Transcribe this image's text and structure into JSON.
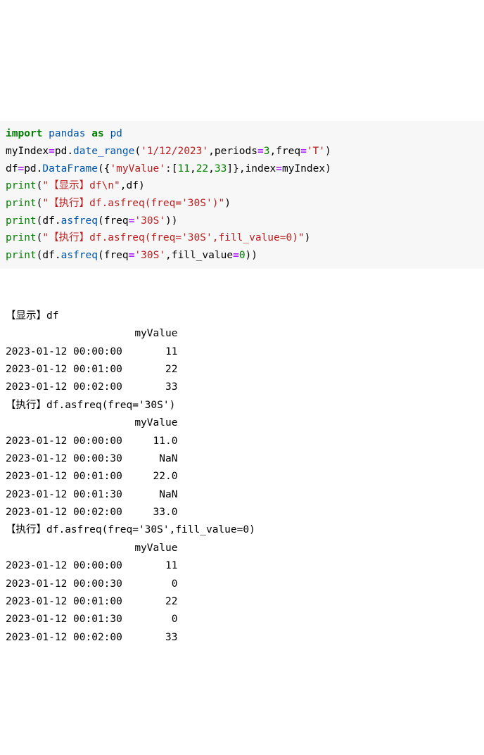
{
  "code": {
    "tokens": [
      [
        [
          "import",
          "kw"
        ],
        [
          " ",
          "ws"
        ],
        [
          "pandas",
          "attr"
        ],
        [
          " ",
          "ws"
        ],
        [
          "as",
          "kw"
        ],
        [
          " ",
          "ws"
        ],
        [
          "pd",
          "attr"
        ]
      ],
      [
        [
          "myIndex",
          "name"
        ],
        [
          "=",
          "op"
        ],
        [
          "pd",
          "name"
        ],
        [
          ".",
          "punct"
        ],
        [
          "date_range",
          "attr"
        ],
        [
          "(",
          "punct"
        ],
        [
          "'1/12/2023'",
          "str"
        ],
        [
          ",",
          "punct"
        ],
        [
          "periods",
          "param"
        ],
        [
          "=",
          "op"
        ],
        [
          "3",
          "num"
        ],
        [
          ",",
          "punct"
        ],
        [
          "freq",
          "param"
        ],
        [
          "=",
          "op"
        ],
        [
          "'T'",
          "str"
        ],
        [
          ")",
          "punct"
        ]
      ],
      [
        [
          "df",
          "name"
        ],
        [
          "=",
          "op"
        ],
        [
          "pd",
          "name"
        ],
        [
          ".",
          "punct"
        ],
        [
          "DataFrame",
          "attr"
        ],
        [
          "({",
          "punct"
        ],
        [
          "'myValue'",
          "str"
        ],
        [
          ":[",
          "punct"
        ],
        [
          "11",
          "num"
        ],
        [
          ",",
          "punct"
        ],
        [
          "22",
          "num"
        ],
        [
          ",",
          "punct"
        ],
        [
          "33",
          "num"
        ],
        [
          "]},",
          "punct"
        ],
        [
          "index",
          "param"
        ],
        [
          "=",
          "op"
        ],
        [
          "myIndex)",
          "name"
        ]
      ],
      [
        [
          "print",
          "bi"
        ],
        [
          "(",
          "punct"
        ],
        [
          "\"【显示】df\\n\"",
          "str"
        ],
        [
          ",",
          "punct"
        ],
        [
          "df)",
          "name"
        ]
      ],
      [
        [
          "print",
          "bi"
        ],
        [
          "(",
          "punct"
        ],
        [
          "\"【执行】df.asfreq(freq='30S')\"",
          "str"
        ],
        [
          ")",
          "punct"
        ]
      ],
      [
        [
          "print",
          "bi"
        ],
        [
          "(",
          "punct"
        ],
        [
          "df",
          "name"
        ],
        [
          ".",
          "punct"
        ],
        [
          "asfreq",
          "attr"
        ],
        [
          "(",
          "punct"
        ],
        [
          "freq",
          "param"
        ],
        [
          "=",
          "op"
        ],
        [
          "'30S'",
          "str"
        ],
        [
          "))",
          "punct"
        ]
      ],
      [
        [
          "print",
          "bi"
        ],
        [
          "(",
          "punct"
        ],
        [
          "\"【执行】df.asfreq(freq='30S',fill_value=0)\"",
          "str"
        ],
        [
          ")",
          "punct"
        ]
      ],
      [
        [
          "print",
          "bi"
        ],
        [
          "(",
          "punct"
        ],
        [
          "df",
          "name"
        ],
        [
          ".",
          "punct"
        ],
        [
          "asfreq",
          "attr"
        ],
        [
          "(",
          "punct"
        ],
        [
          "freq",
          "param"
        ],
        [
          "=",
          "op"
        ],
        [
          "'30S'",
          "str"
        ],
        [
          ",",
          "punct"
        ],
        [
          "fill_value",
          "param"
        ],
        [
          "=",
          "op"
        ],
        [
          "0",
          "num"
        ],
        [
          "))",
          "punct"
        ]
      ]
    ],
    "background": "#f7f7f7",
    "colors": {
      "kw": "#008000",
      "name": "#000000",
      "bi": "#008000",
      "op": "#aa22ff",
      "punct": "#000000",
      "str": "#ba2121",
      "num": "#008000",
      "attr": "#0055aa",
      "param": "#000000",
      "ws": "#000000"
    }
  },
  "output": {
    "lines": [
      "【显示】df",
      "                     myValue",
      "2023-01-12 00:00:00       11",
      "2023-01-12 00:01:00       22",
      "2023-01-12 00:02:00       33",
      "【执行】df.asfreq(freq='30S')",
      "                     myValue",
      "2023-01-12 00:00:00     11.0",
      "2023-01-12 00:00:30      NaN",
      "2023-01-12 00:01:00     22.0",
      "2023-01-12 00:01:30      NaN",
      "2023-01-12 00:02:00     33.0",
      "【执行】df.asfreq(freq='30S',fill_value=0)",
      "                     myValue",
      "2023-01-12 00:00:00       11",
      "2023-01-12 00:00:30        0",
      "2023-01-12 00:01:00       22",
      "2023-01-12 00:01:30        0",
      "2023-01-12 00:02:00       33"
    ],
    "color": "#000000",
    "background": "#ffffff"
  }
}
